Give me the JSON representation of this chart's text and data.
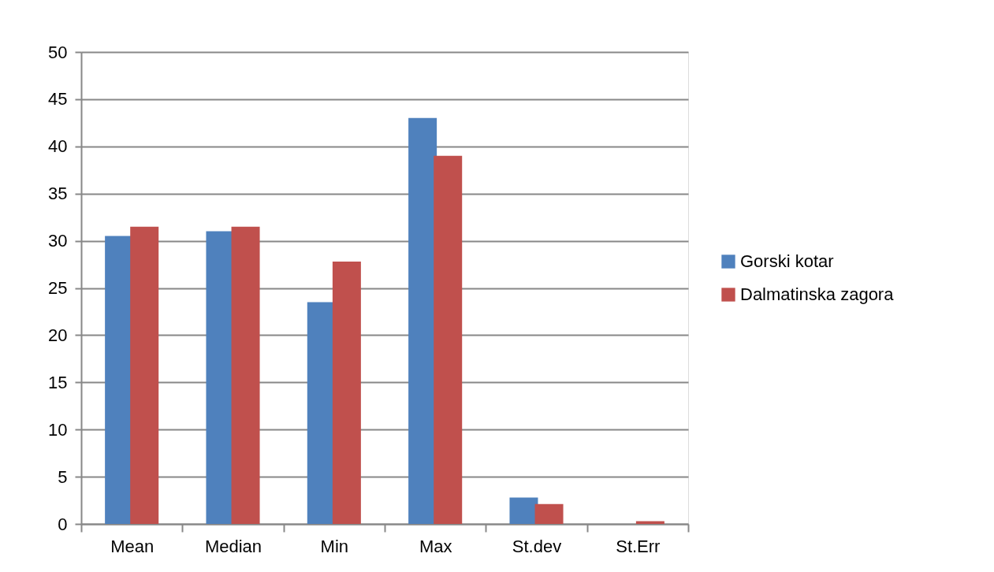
{
  "chart_data": {
    "type": "bar",
    "categories": [
      "Mean",
      "Median",
      "Min",
      "Max",
      "St.dev",
      "St.Err"
    ],
    "series": [
      {
        "name": "Gorski kotar",
        "color": "#4f81bd",
        "values": [
          30.5,
          31.0,
          23.5,
          43.0,
          2.8,
          0
        ]
      },
      {
        "name": "Dalmatinska zagora",
        "color": "#c0504d",
        "values": [
          31.5,
          31.5,
          27.8,
          39.0,
          2.1,
          0.3
        ]
      }
    ],
    "ylim": [
      0,
      50
    ],
    "yticks": [
      0,
      5,
      10,
      15,
      20,
      25,
      30,
      35,
      40,
      45,
      50
    ],
    "grid": "y",
    "legend": "right"
  }
}
